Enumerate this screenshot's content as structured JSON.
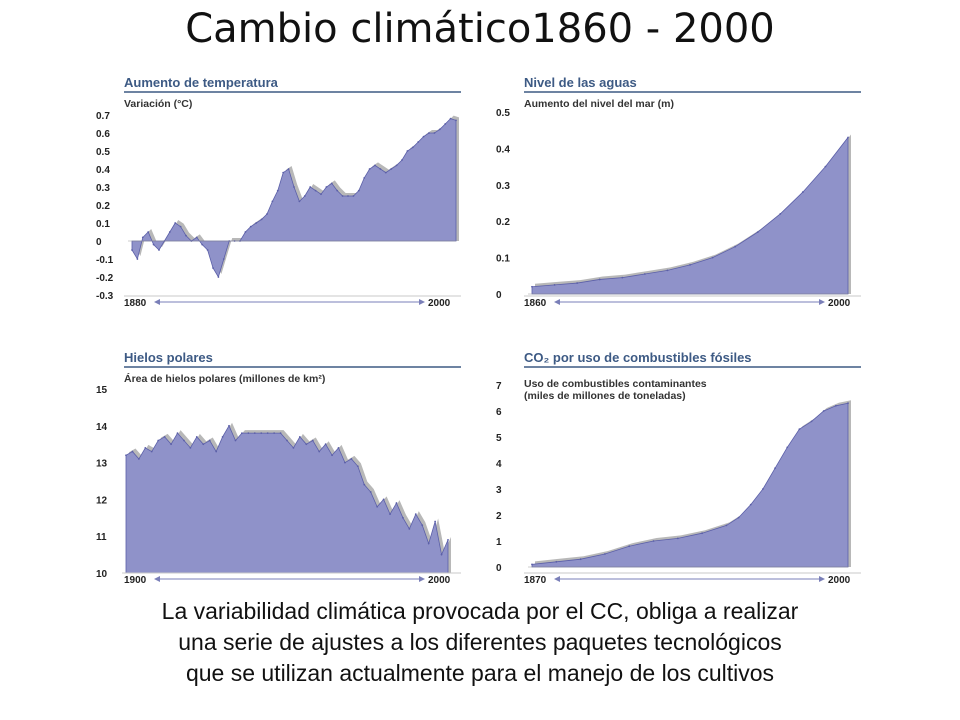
{
  "title": "Cambio climático1860 - 2000",
  "caption_lines": [
    "La variabilidad climática provocada por el CC, obliga a realizar",
    "una serie de ajustes a los diferentes paquetes tecnológicos",
    "que se utilizan actualmente para el manejo de los cultivos"
  ],
  "colors": {
    "fill": "#8f92c9",
    "fill_dark": "#5b5fa8",
    "shadow": "#b8b8b8",
    "header_line": "#3d5a84"
  },
  "chart_data": [
    {
      "id": "temp",
      "type": "area",
      "title": "Aumento de temperatura",
      "ylabel": "Variación (°C)",
      "y_ticks": [
        "0.7",
        "0.6",
        "0.5",
        "0.4",
        "0.3",
        "0.2",
        "0.1",
        "0",
        "-0.1",
        "-0.2",
        "-0.3"
      ],
      "ylim": [
        -0.3,
        0.7
      ],
      "xlim": [
        1880,
        2000
      ],
      "x_start_label": "1880",
      "x_end_label": "2000",
      "x": [
        1880,
        1882,
        1884,
        1886,
        1888,
        1890,
        1892,
        1894,
        1896,
        1898,
        1900,
        1902,
        1904,
        1906,
        1908,
        1910,
        1912,
        1914,
        1916,
        1918,
        1920,
        1922,
        1924,
        1926,
        1928,
        1930,
        1932,
        1934,
        1936,
        1938,
        1940,
        1942,
        1944,
        1946,
        1948,
        1950,
        1952,
        1954,
        1956,
        1958,
        1960,
        1962,
        1964,
        1966,
        1968,
        1970,
        1972,
        1974,
        1976,
        1978,
        1980,
        1982,
        1984,
        1986,
        1988,
        1990,
        1992,
        1994,
        1996,
        1998,
        2000
      ],
      "y": [
        -0.05,
        -0.1,
        0.02,
        0.05,
        -0.02,
        -0.05,
        0.0,
        0.05,
        0.1,
        0.08,
        0.03,
        0.0,
        0.02,
        -0.02,
        -0.05,
        -0.15,
        -0.2,
        -0.1,
        0.0,
        0.0,
        0.0,
        0.05,
        0.08,
        0.1,
        0.12,
        0.15,
        0.22,
        0.28,
        0.38,
        0.4,
        0.3,
        0.22,
        0.25,
        0.3,
        0.28,
        0.26,
        0.3,
        0.32,
        0.28,
        0.25,
        0.25,
        0.25,
        0.28,
        0.35,
        0.4,
        0.42,
        0.4,
        0.38,
        0.4,
        0.42,
        0.45,
        0.5,
        0.52,
        0.55,
        0.58,
        0.6,
        0.6,
        0.62,
        0.65,
        0.68,
        0.67
      ]
    },
    {
      "id": "sea",
      "type": "area",
      "title": "Nivel de las aguas",
      "ylabel": "Aumento del nivel del mar (m)",
      "y_ticks": [
        "0.5",
        "0.4",
        "0.3",
        "0.2",
        "0.1",
        "0"
      ],
      "ylim": [
        0,
        0.5
      ],
      "xlim": [
        1860,
        2000
      ],
      "x_start_label": "1860",
      "x_end_label": "2000",
      "x": [
        1860,
        1870,
        1880,
        1890,
        1900,
        1910,
        1920,
        1930,
        1940,
        1950,
        1960,
        1970,
        1980,
        1990,
        2000
      ],
      "y": [
        0.02,
        0.025,
        0.03,
        0.04,
        0.045,
        0.055,
        0.065,
        0.08,
        0.1,
        0.13,
        0.17,
        0.22,
        0.28,
        0.35,
        0.43
      ]
    },
    {
      "id": "ice",
      "type": "area",
      "title": "Hielos polares",
      "ylabel": "Área de hielos polares (millones de km²)",
      "y_ticks": [
        "15",
        "14",
        "13",
        "12",
        "11",
        "10"
      ],
      "ylim": [
        10,
        15
      ],
      "xlim": [
        1900,
        2000
      ],
      "x_start_label": "1900",
      "x_end_label": "2000",
      "x": [
        1900,
        1902,
        1904,
        1906,
        1908,
        1910,
        1912,
        1914,
        1916,
        1918,
        1920,
        1922,
        1924,
        1926,
        1928,
        1930,
        1932,
        1934,
        1936,
        1938,
        1940,
        1942,
        1944,
        1946,
        1948,
        1950,
        1952,
        1954,
        1956,
        1958,
        1960,
        1962,
        1964,
        1966,
        1968,
        1970,
        1972,
        1974,
        1976,
        1978,
        1980,
        1982,
        1984,
        1986,
        1988,
        1990,
        1992,
        1994,
        1996,
        1998,
        2000
      ],
      "y": [
        13.2,
        13.3,
        13.1,
        13.4,
        13.3,
        13.6,
        13.7,
        13.5,
        13.8,
        13.6,
        13.4,
        13.7,
        13.5,
        13.6,
        13.3,
        13.7,
        14.0,
        13.6,
        13.8,
        13.8,
        13.8,
        13.8,
        13.8,
        13.8,
        13.8,
        13.6,
        13.4,
        13.7,
        13.5,
        13.6,
        13.3,
        13.5,
        13.2,
        13.4,
        13.0,
        13.1,
        12.9,
        12.4,
        12.2,
        11.8,
        12.0,
        11.6,
        11.9,
        11.5,
        11.2,
        11.6,
        11.3,
        10.8,
        11.4,
        10.5,
        10.9
      ]
    },
    {
      "id": "co2",
      "type": "area",
      "title": "CO₂ por uso de combustibles fósiles",
      "ylabel_lines": [
        "Uso de combustibles contaminantes",
        "(miles de millones de toneladas)"
      ],
      "y_ticks": [
        "7",
        "6",
        "5",
        "4",
        "3",
        "2",
        "1",
        "0"
      ],
      "ylim": [
        0,
        7
      ],
      "xlim": [
        1870,
        2000
      ],
      "x_start_label": "1870",
      "x_end_label": "2000",
      "x": [
        1870,
        1880,
        1890,
        1900,
        1910,
        1920,
        1930,
        1940,
        1950,
        1955,
        1960,
        1965,
        1970,
        1975,
        1980,
        1985,
        1990,
        1995,
        2000
      ],
      "y": [
        0.1,
        0.2,
        0.3,
        0.5,
        0.8,
        1.0,
        1.1,
        1.3,
        1.6,
        1.9,
        2.4,
        3.0,
        3.8,
        4.6,
        5.3,
        5.6,
        6.0,
        6.2,
        6.3
      ]
    }
  ]
}
